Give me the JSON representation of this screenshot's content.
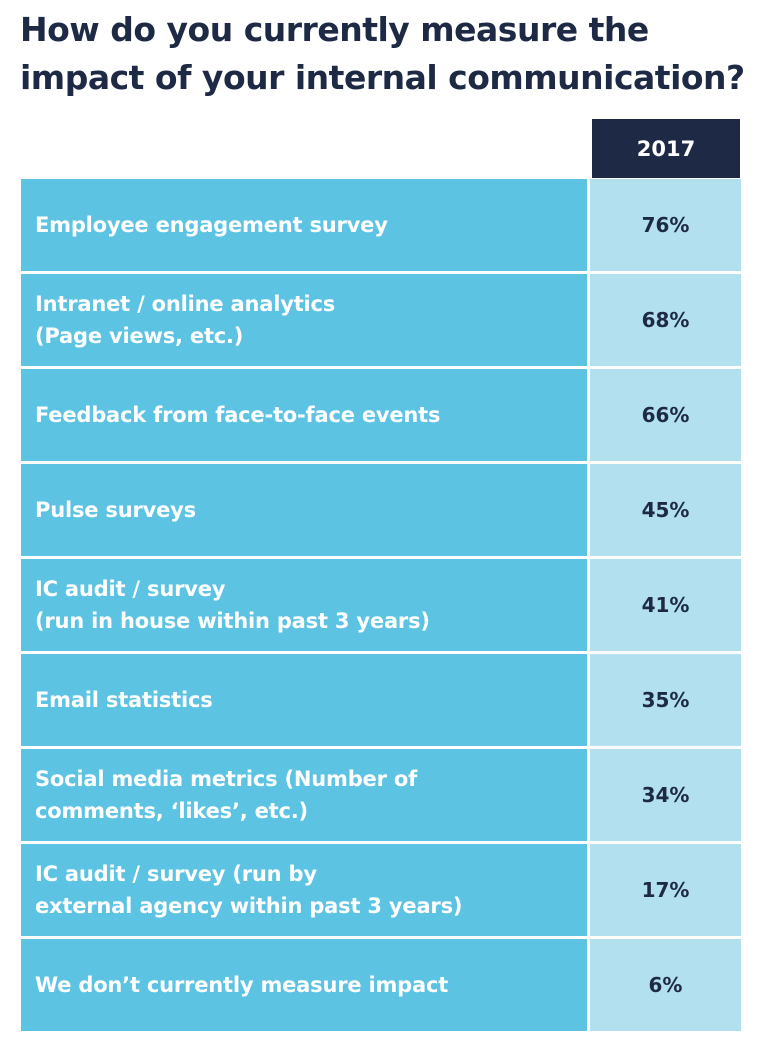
{
  "chart_data": {
    "type": "table",
    "title": "How do you currently measure the impact of your internal communication?",
    "column_header": "2017",
    "rows": [
      {
        "label": [
          "Employee engagement survey"
        ],
        "value": 76,
        "display": "76%"
      },
      {
        "label": [
          "Intranet / online analytics",
          "(Page views, etc.)"
        ],
        "value": 68,
        "display": "68%"
      },
      {
        "label": [
          "Feedback from face-to-face events"
        ],
        "value": 66,
        "display": "66%"
      },
      {
        "label": [
          "Pulse surveys"
        ],
        "value": 45,
        "display": "45%"
      },
      {
        "label": [
          "IC audit / survey",
          "(run in house within past 3 years)"
        ],
        "value": 41,
        "display": "41%"
      },
      {
        "label": [
          "Email statistics"
        ],
        "value": 35,
        "display": "35%"
      },
      {
        "label": [
          "Social media metrics (Number of",
          "comments, ‘likes’, etc.)"
        ],
        "value": 34,
        "display": "34%"
      },
      {
        "label": [
          "IC audit / survey (run by",
          "external agency within past 3 years)"
        ],
        "value": 17,
        "display": "17%"
      },
      {
        "label": [
          "We don’t currently measure impact"
        ],
        "value": 6,
        "display": "6%"
      }
    ]
  },
  "colors": {
    "title": "#1e2a45",
    "header_bg": "#1e2a45",
    "label_bg": "#5cc3e3",
    "value_bg": "#b2e0ef"
  }
}
